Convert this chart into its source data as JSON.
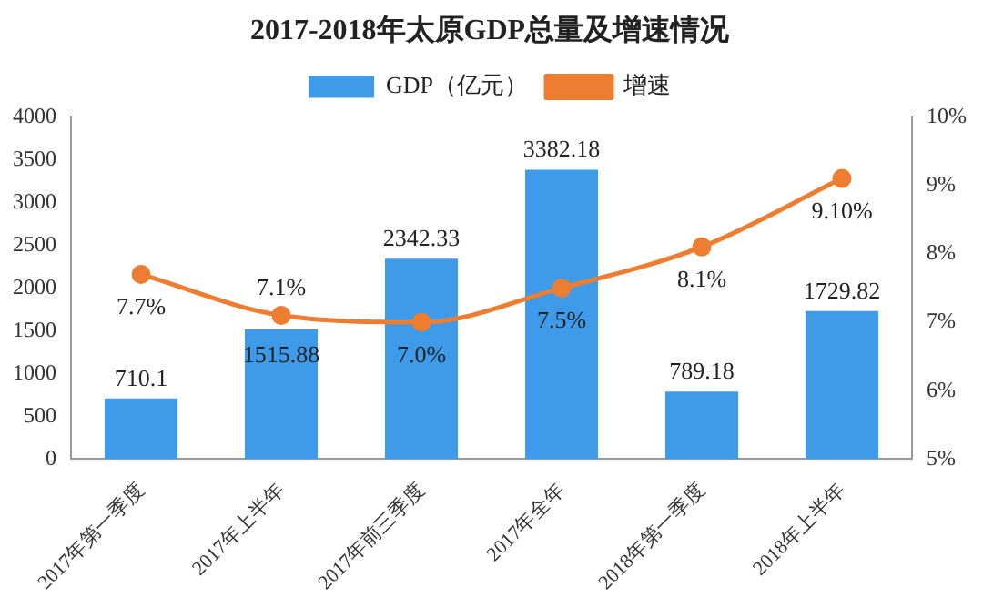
{
  "chart_data": {
    "type": "bar",
    "title": "2017-2018年太原GDP总量及增速情况",
    "categories": [
      "2017年第一季度",
      "2017年上半年",
      "2017年前三季度",
      "2017年全年",
      "2018年第一季度",
      "2018年上半年"
    ],
    "series": [
      {
        "name": "GDP（亿元）",
        "color": "#3d9be9",
        "values": [
          710.1,
          1515.88,
          2342.33,
          3382.18,
          789.18,
          1729.82
        ],
        "value_labels": [
          "710.1",
          "1515.88",
          "2342.33",
          "3382.18",
          "789.18",
          "1729.82"
        ]
      },
      {
        "name": "增速",
        "type": "line",
        "axis": "y2",
        "color": "#ed7d31",
        "marker": "circle",
        "values": [
          7.7,
          7.1,
          7.0,
          7.5,
          8.1,
          9.1
        ],
        "value_labels": [
          "7.7%",
          "7.1%",
          "7.0%",
          "7.5%",
          "8.1%",
          "9.10%"
        ]
      }
    ],
    "ylim": [
      0,
      4000
    ],
    "yticks": [
      0,
      500,
      1000,
      1500,
      2000,
      2500,
      3000,
      3500,
      4000
    ],
    "y2lim": [
      5,
      10
    ],
    "y2ticks": [
      {
        "value": 5,
        "label": "5%"
      },
      {
        "value": 6,
        "label": "6%"
      },
      {
        "value": 7,
        "label": "7%"
      },
      {
        "value": 8,
        "label": "8%"
      },
      {
        "value": 9,
        "label": "9%"
      },
      {
        "value": 10,
        "label": "10%"
      }
    ],
    "grid": false,
    "legend": "top"
  }
}
